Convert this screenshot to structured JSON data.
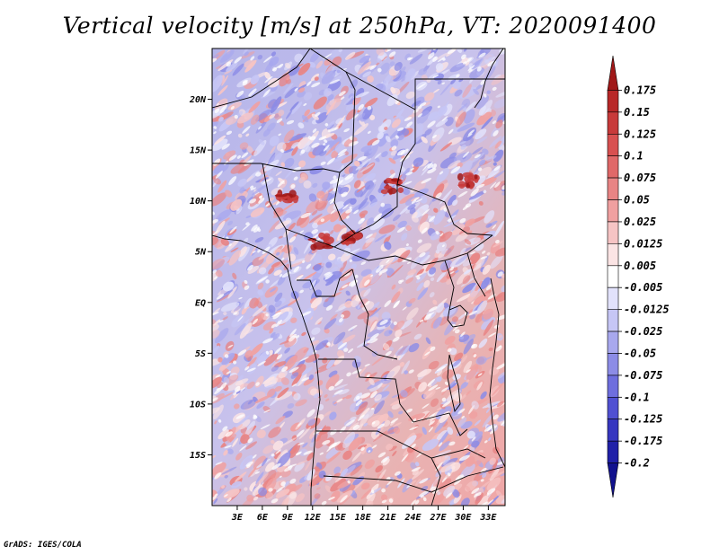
{
  "title": "Vertical velocity [m/s] at 250hPa, VT: 2020091400",
  "footer": "GrADS: IGES/COLA",
  "chart_data": {
    "type": "heatmap",
    "title": "Vertical velocity [m/s] at 250hPa, VT: 2020091400",
    "variable": "Vertical velocity",
    "units": "m/s",
    "level": "250hPa",
    "valid_time": "2020091400",
    "xlim": [
      0,
      35
    ],
    "ylim": [
      -20,
      25
    ],
    "x_ticks": [
      {
        "value": 3,
        "label": "3E"
      },
      {
        "value": 6,
        "label": "6E"
      },
      {
        "value": 9,
        "label": "9E"
      },
      {
        "value": 12,
        "label": "12E"
      },
      {
        "value": 15,
        "label": "15E"
      },
      {
        "value": 18,
        "label": "18E"
      },
      {
        "value": 21,
        "label": "21E"
      },
      {
        "value": 24,
        "label": "24E"
      },
      {
        "value": 27,
        "label": "27E"
      },
      {
        "value": 30,
        "label": "30E"
      },
      {
        "value": 33,
        "label": "33E"
      }
    ],
    "y_ticks": [
      {
        "value": 20,
        "label": "20N"
      },
      {
        "value": 15,
        "label": "15N"
      },
      {
        "value": 10,
        "label": "10N"
      },
      {
        "value": 5,
        "label": "5N"
      },
      {
        "value": 0,
        "label": "EQ"
      },
      {
        "value": -5,
        "label": "5S"
      },
      {
        "value": -10,
        "label": "10S"
      },
      {
        "value": -15,
        "label": "15S"
      }
    ],
    "colorbar": {
      "labels": [
        "0.175",
        "0.15",
        "0.125",
        "0.1",
        "0.075",
        "0.05",
        "0.025",
        "0.0125",
        "0.005",
        "-0.005",
        "-0.0125",
        "-0.025",
        "-0.05",
        "-0.075",
        "-0.1",
        "-0.125",
        "-0.175",
        "-0.2"
      ],
      "colors": [
        "#a01818",
        "#b82828",
        "#c83a3a",
        "#d85050",
        "#e06868",
        "#e88484",
        "#f0a0a0",
        "#f6c4c4",
        "#fbe4e4",
        "#ffffff",
        "#e2e2fb",
        "#c6c6f5",
        "#a8a8ee",
        "#8c8ce6",
        "#6e6ede",
        "#5050d2",
        "#3636c0",
        "#2020a8",
        "#12128e"
      ]
    },
    "features": {
      "strong_updraft_regions": [
        {
          "lon": 9,
          "lat": 10.5
        },
        {
          "lon": 13,
          "lat": 6
        },
        {
          "lon": 16.5,
          "lat": 6.5
        },
        {
          "lon": 21.5,
          "lat": 11.5
        },
        {
          "lon": 30.5,
          "lat": 12
        }
      ]
    }
  }
}
